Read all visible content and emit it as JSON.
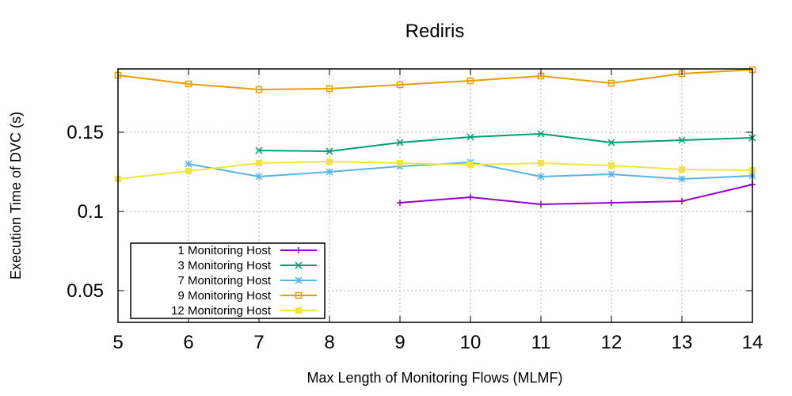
{
  "chart_data": {
    "type": "line",
    "title": "Rediris",
    "xlabel": "Max Length of Monitoring Flows (MLMF)",
    "ylabel": "Execution Time of DVC (s)",
    "xlim": [
      5,
      14
    ],
    "ylim": [
      0.03,
      0.19
    ],
    "xticks": [
      5,
      6,
      7,
      8,
      9,
      10,
      11,
      12,
      13,
      14
    ],
    "xtick_labels": [
      "5",
      "6",
      "7",
      "8",
      "9",
      "10",
      "11",
      "12",
      "13",
      "14"
    ],
    "yticks": [
      0.05,
      0.1,
      0.15
    ],
    "ytick_labels": [
      "0.05",
      "0.1",
      "0.15"
    ],
    "grid": true,
    "legend_position": "bottom-left",
    "series": [
      {
        "name": "1 Monitoring Host",
        "color": "#9400d3",
        "marker": "plus",
        "x": [
          9,
          10,
          11,
          12,
          13,
          14
        ],
        "y": [
          0.1055,
          0.109,
          0.1045,
          0.1055,
          0.1065,
          0.117
        ]
      },
      {
        "name": "3 Monitoring Host",
        "color": "#009e73",
        "marker": "cross",
        "x": [
          7,
          8,
          9,
          10,
          11,
          12,
          13,
          14
        ],
        "y": [
          0.1385,
          0.138,
          0.1435,
          0.147,
          0.149,
          0.1435,
          0.145,
          0.1465
        ]
      },
      {
        "name": "7 Monitoring Host",
        "color": "#56b4e9",
        "marker": "star",
        "x": [
          6,
          7,
          8,
          9,
          10,
          11,
          12,
          13,
          14
        ],
        "y": [
          0.13,
          0.122,
          0.125,
          0.1285,
          0.131,
          0.122,
          0.1235,
          0.1205,
          0.1225
        ]
      },
      {
        "name": "9 Monitoring Host",
        "color": "#e69f00",
        "marker": "square-open",
        "x": [
          5,
          6,
          7,
          8,
          9,
          10,
          11,
          12,
          13,
          14
        ],
        "y": [
          0.186,
          0.1805,
          0.177,
          0.1775,
          0.18,
          0.1825,
          0.1855,
          0.181,
          0.187,
          0.1895
        ]
      },
      {
        "name": "12 Monitoring Host",
        "color": "#f0e442",
        "marker": "square-filled",
        "x": [
          5,
          6,
          7,
          8,
          9,
          10,
          11,
          12,
          13,
          14
        ],
        "y": [
          0.1205,
          0.1255,
          0.1305,
          0.1315,
          0.1305,
          0.1295,
          0.1305,
          0.129,
          0.1265,
          0.126
        ]
      }
    ]
  }
}
